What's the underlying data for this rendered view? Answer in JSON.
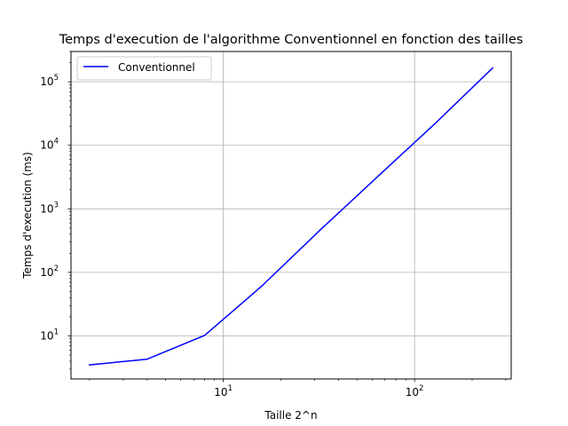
{
  "chart_data": {
    "type": "line",
    "title": "Temps d'execution de l'algorithme Conventionnel en fonction des tailles",
    "xlabel": "Taille 2^n",
    "ylabel": "Temps d'execution (ms)",
    "xscale": "log",
    "yscale": "log",
    "xlim": [
      1.6,
      320
    ],
    "ylim": [
      2.1,
      300000
    ],
    "grid": true,
    "legend_position": "top-left",
    "x_ticks": [
      {
        "value": 10,
        "base": "10",
        "exp": "1"
      },
      {
        "value": 100,
        "base": "10",
        "exp": "2"
      }
    ],
    "y_ticks": [
      {
        "value": 10,
        "base": "10",
        "exp": "1"
      },
      {
        "value": 100,
        "base": "10",
        "exp": "2"
      },
      {
        "value": 1000,
        "base": "10",
        "exp": "3"
      },
      {
        "value": 10000,
        "base": "10",
        "exp": "4"
      },
      {
        "value": 100000,
        "base": "10",
        "exp": "5"
      }
    ],
    "series": [
      {
        "name": "Conventionnel",
        "color": "#0000ff",
        "x": [
          2,
          4,
          8,
          16,
          32,
          64,
          128,
          256
        ],
        "y": [
          3.5,
          4.3,
          10.2,
          62,
          460,
          3200,
          22000,
          165000
        ]
      }
    ]
  }
}
